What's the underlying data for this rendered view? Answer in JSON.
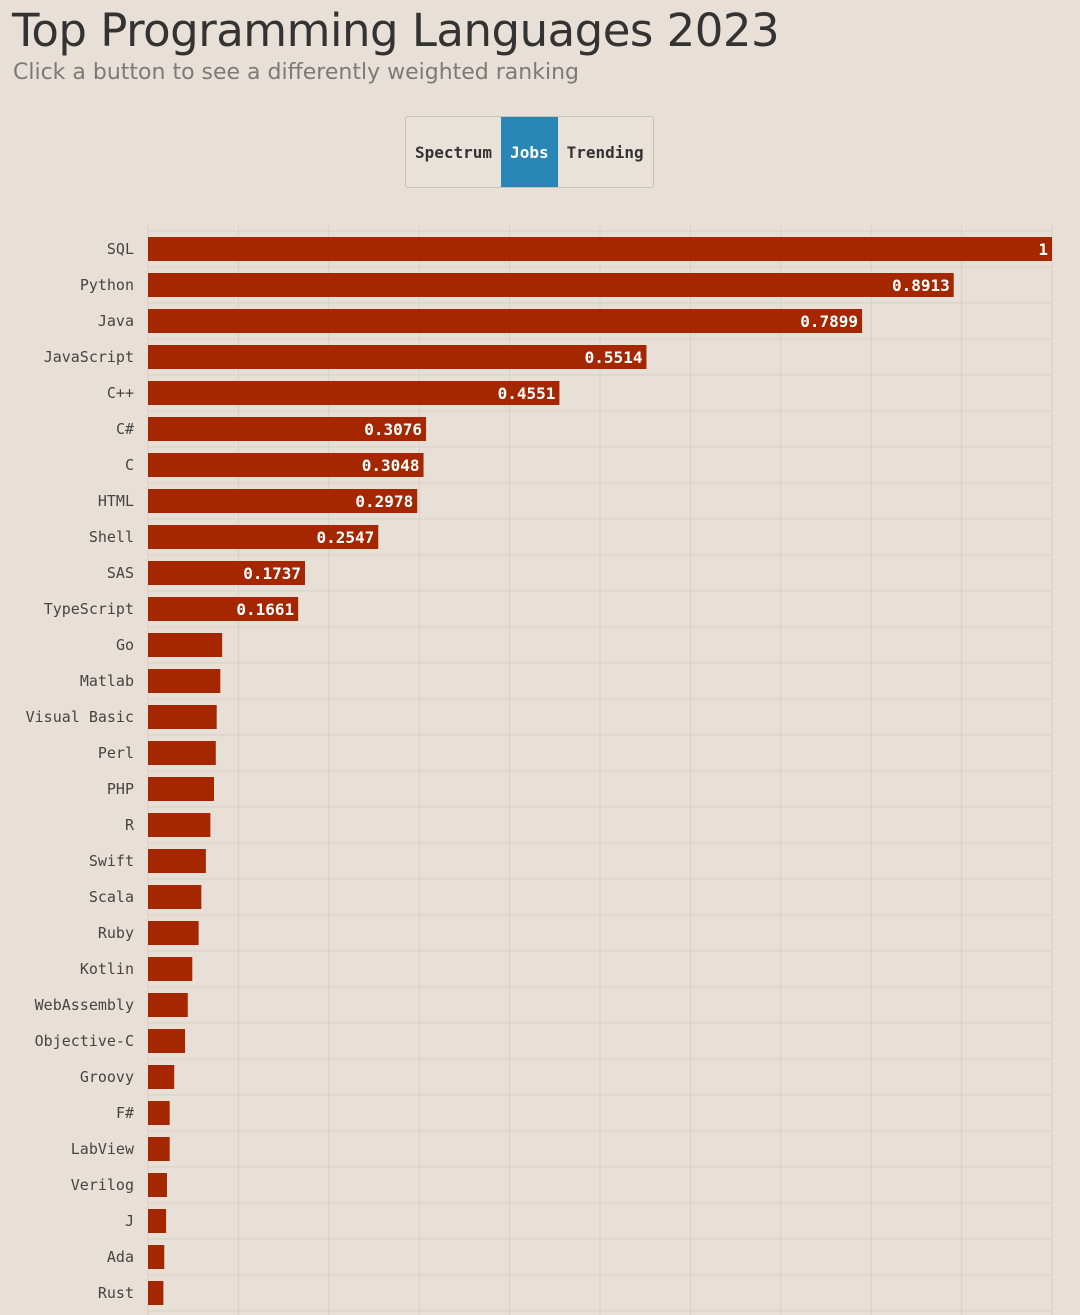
{
  "header": {
    "title": "Top Programming Languages 2023",
    "subtitle": "Click a button to see a differently weighted ranking"
  },
  "buttons": [
    {
      "label": "Spectrum",
      "active": false
    },
    {
      "label": "Jobs",
      "active": true
    },
    {
      "label": "Trending",
      "active": false
    }
  ],
  "colors": {
    "bar": "#a52700",
    "active_button": "#2a86b6",
    "background": "#e8e0d6",
    "grid": "#d6d0ca"
  },
  "chart_data": {
    "type": "bar",
    "orientation": "horizontal",
    "xlim": [
      0,
      1
    ],
    "grid": true,
    "categories": [
      "SQL",
      "Python",
      "Java",
      "JavaScript",
      "C++",
      "C#",
      "C",
      "HTML",
      "Shell",
      "SAS",
      "TypeScript",
      "Go",
      "Matlab",
      "Visual Basic",
      "Perl",
      "PHP",
      "R",
      "Swift",
      "Scala",
      "Ruby",
      "Kotlin",
      "WebAssembly",
      "Objective-C",
      "Groovy",
      "F#",
      "LabView",
      "Verilog",
      "J",
      "Ada",
      "Rust"
    ],
    "values": [
      1,
      0.8913,
      0.7899,
      0.5514,
      0.4551,
      0.3076,
      0.3048,
      0.2978,
      0.2547,
      0.1737,
      0.1661,
      0.082,
      0.08,
      0.076,
      0.075,
      0.073,
      0.069,
      0.064,
      0.059,
      0.056,
      0.049,
      0.044,
      0.041,
      0.029,
      0.024,
      0.024,
      0.021,
      0.02,
      0.018,
      0.017
    ],
    "data_labels": [
      "1",
      "0.8913",
      "0.7899",
      "0.5514",
      "0.4551",
      "0.3076",
      "0.3048",
      "0.2978",
      "0.2547",
      "0.1737",
      "0.1661",
      "",
      "",
      "",
      "",
      "",
      "",
      "",
      "",
      "",
      "",
      "",
      "",
      "",
      "",
      "",
      "",
      "",
      "",
      ""
    ]
  }
}
